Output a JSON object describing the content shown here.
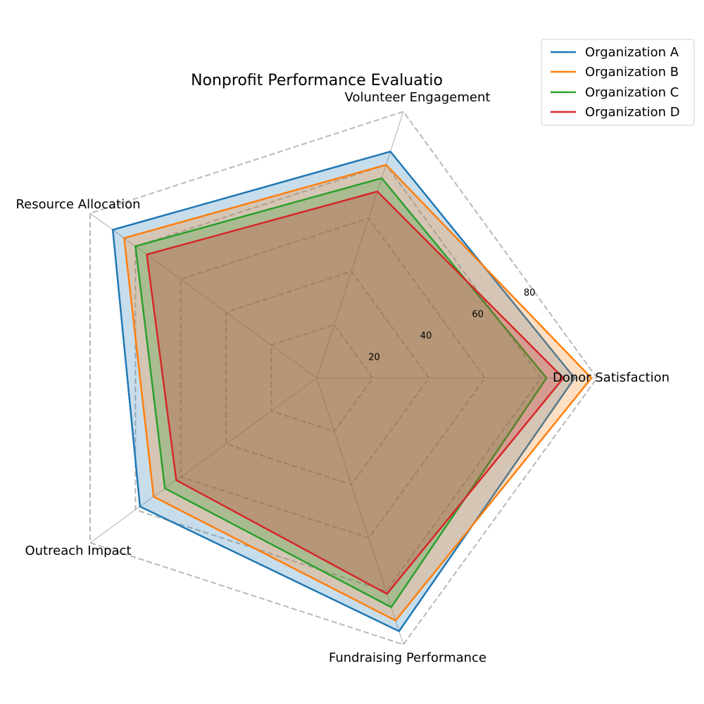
{
  "chart_data": {
    "type": "radar",
    "title": "Nonprofit Performance Evaluatio",
    "axes": [
      "Donor Satisfaction",
      "Volunteer Engagement",
      "Resource Allocation",
      "Outreach Impact",
      "Fundraising Performance"
    ],
    "rlim": [
      0,
      100
    ],
    "r_ticks": [
      20,
      40,
      60,
      80
    ],
    "r_tick_labels": [
      "20",
      "40",
      "60",
      "80"
    ],
    "grid": true,
    "legend_position": "top-right",
    "series": [
      {
        "name": "Organization A",
        "values": [
          92,
          85,
          90,
          78,
          95
        ],
        "color": "#1f77b4"
      },
      {
        "name": "Organization B",
        "values": [
          98,
          80,
          85,
          72,
          91
        ],
        "color": "#ff7f0e"
      },
      {
        "name": "Organization C",
        "values": [
          82,
          75,
          80,
          67,
          86
        ],
        "color": "#2ca02c"
      },
      {
        "name": "Organization D",
        "values": [
          88,
          70,
          75,
          62,
          81
        ],
        "color": "#d62728"
      }
    ]
  }
}
